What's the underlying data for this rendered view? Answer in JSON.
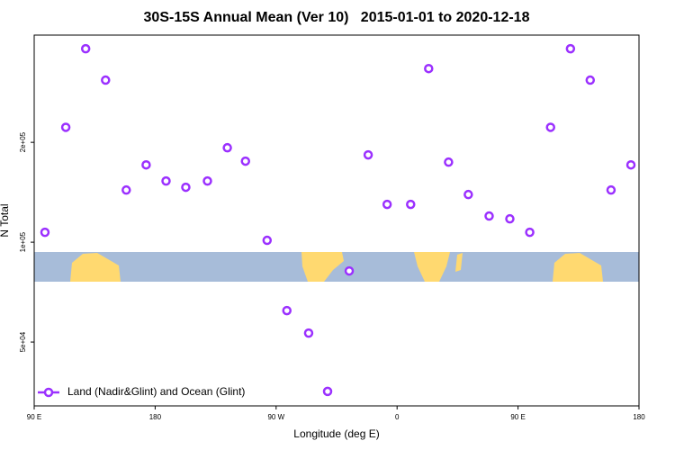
{
  "chart_data": {
    "type": "scatter",
    "title": "30S-15S Annual Mean (Ver 10)   2015-01-01 to 2020-12-18",
    "x_label": "Longitude (deg E)",
    "y_label": "N Total",
    "ylog": true,
    "legend": "bottom-left",
    "xlim": [
      90,
      540
    ],
    "xticks": [
      {
        "value": 90,
        "label": "90 E"
      },
      {
        "value": 180,
        "label": "180"
      },
      {
        "value": 270,
        "label": "90 W"
      },
      {
        "value": 360,
        "label": "0"
      },
      {
        "value": 450,
        "label": "90 E"
      },
      {
        "value": 540,
        "label": "180"
      }
    ],
    "ylim": [
      32100,
      421000
    ],
    "yticks": [
      {
        "value": 50000,
        "label": "5e+04"
      },
      {
        "value": 100000,
        "label": "1e+05"
      },
      {
        "value": 200000,
        "label": "2e+05"
      }
    ],
    "series": [
      {
        "name": "Land (Nadir&Glint) and Ocean (Glint)",
        "color": "#9b30ff",
        "x": [
          98,
          113.5,
          128.3,
          143.1,
          158.5,
          173.3,
          188.1,
          202.8,
          218.9,
          233.7,
          247.2,
          263.3,
          278,
          294.2,
          308.3,
          324.4,
          338.5,
          352.6,
          370.1,
          383.5,
          398.3,
          413,
          428.5,
          443.9,
          458.7,
          474.2,
          489,
          503.7,
          519.2,
          534
        ],
        "values": [
          107100,
          222000,
          383000,
          308000,
          143600,
          171000,
          152900,
          146400,
          152900,
          192600,
          175500,
          101300,
          62200,
          53200,
          35500,
          81900,
          183300,
          130000,
          130000,
          333700,
          174300,
          139200,
          119900,
          117600,
          107100,
          222000,
          383000,
          308000,
          143600,
          171000
        ]
      }
    ]
  }
}
